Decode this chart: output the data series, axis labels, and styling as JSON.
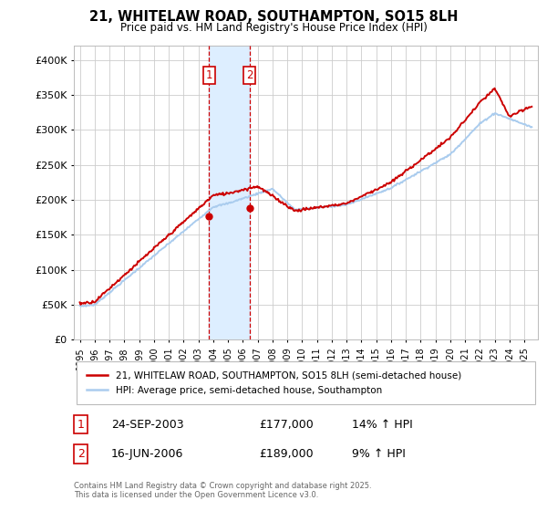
{
  "title": "21, WHITELAW ROAD, SOUTHAMPTON, SO15 8LH",
  "subtitle": "Price paid vs. HM Land Registry's House Price Index (HPI)",
  "legend_label_red": "21, WHITELAW ROAD, SOUTHAMPTON, SO15 8LH (semi-detached house)",
  "legend_label_blue": "HPI: Average price, semi-detached house, Southampton",
  "footer": "Contains HM Land Registry data © Crown copyright and database right 2025.\nThis data is licensed under the Open Government Licence v3.0.",
  "transaction1_label": "1",
  "transaction1_date": "24-SEP-2003",
  "transaction1_price": "£177,000",
  "transaction1_hpi": "14% ↑ HPI",
  "transaction2_label": "2",
  "transaction2_date": "16-JUN-2006",
  "transaction2_price": "£189,000",
  "transaction2_hpi": "9% ↑ HPI",
  "sale1_year": 2003.73,
  "sale1_price": 177000,
  "sale2_year": 2006.46,
  "sale2_price": 189000,
  "bg_color": "#ffffff",
  "red_color": "#cc0000",
  "blue_color": "#aaccee",
  "shade_color": "#ddeeff",
  "grid_color": "#cccccc",
  "ylim": [
    0,
    420000
  ],
  "yticks": [
    0,
    50000,
    100000,
    150000,
    200000,
    250000,
    300000,
    350000,
    400000
  ],
  "xlim_start": 1994.6,
  "xlim_end": 2025.9
}
